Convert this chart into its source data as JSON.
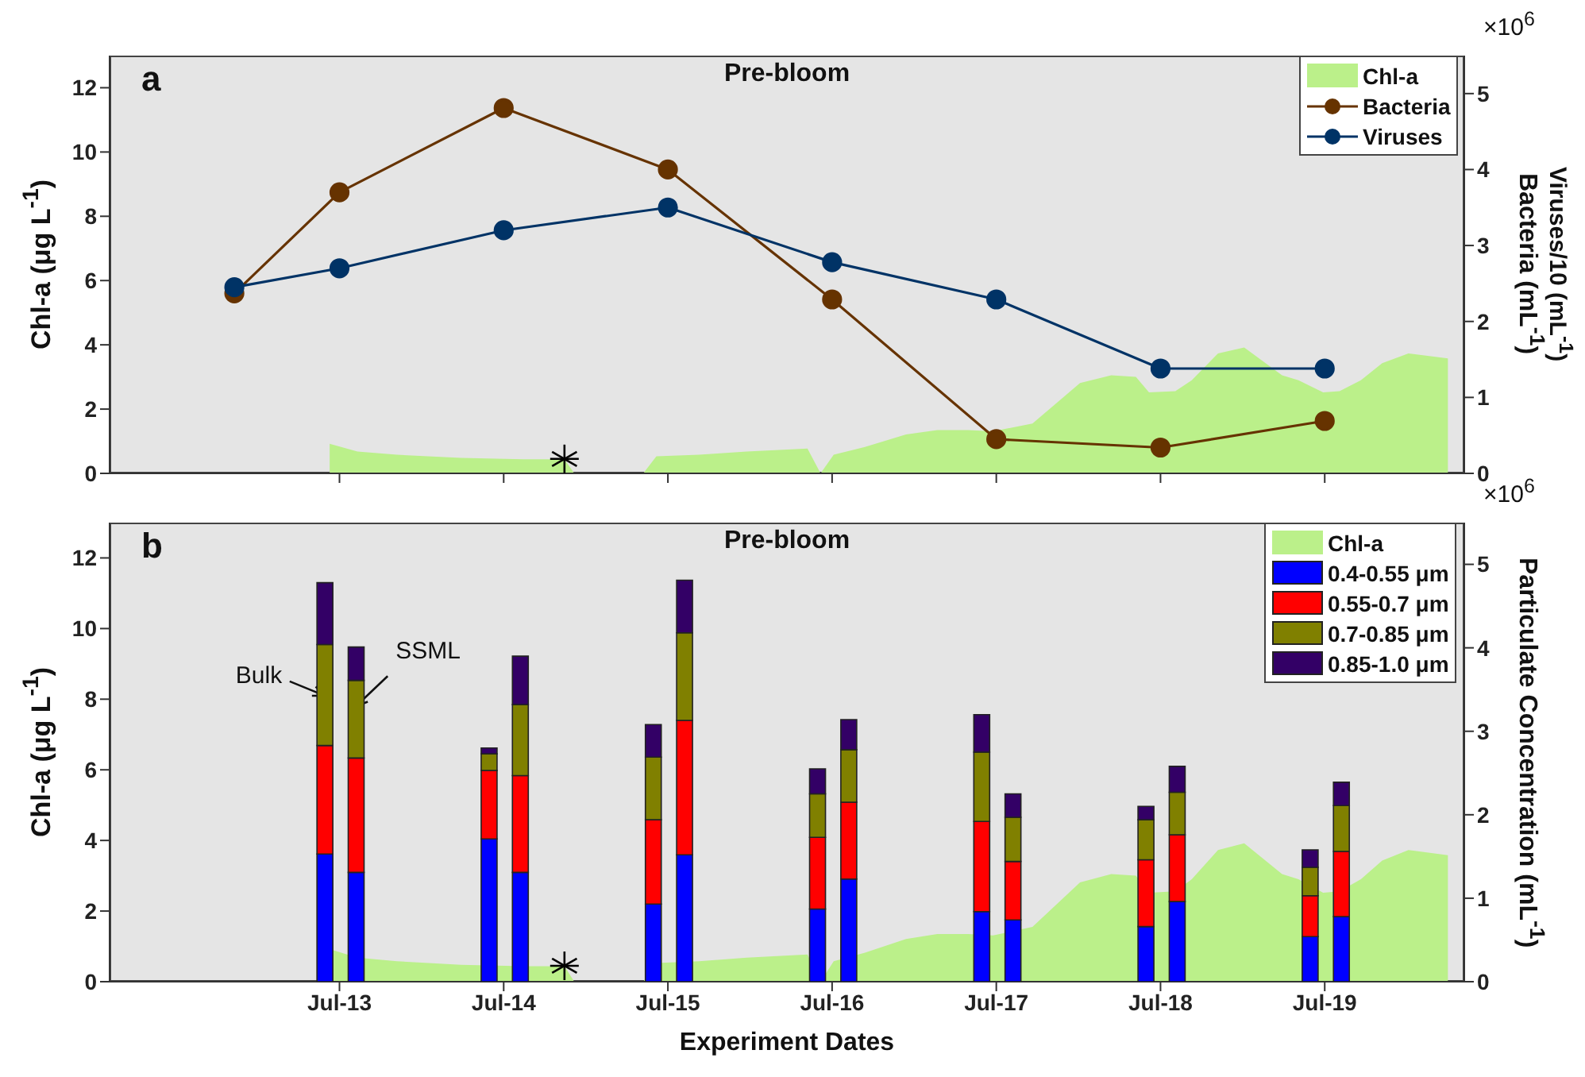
{
  "chart_data": [
    {
      "type": "line",
      "title": "Pre-bloom",
      "ylabel": "Chl-a (μg L$^{-1}$)",
      "y2label": "Bacteria (mL$^{-1}$)",
      "annotations": [
        "a",
        "×10$^{6}$",
        "Viruses/10 (mL$^{-1}$)"
      ],
      "xlim": [
        "--07-11T14:24",
        "--07-19T20:24"
      ],
      "xticks": [
        {
          "value": "--07-13",
          "label": null
        },
        {
          "value": "--07-14",
          "label": null
        },
        {
          "value": "--07-15",
          "label": null
        },
        {
          "value": "--07-16",
          "label": null
        },
        {
          "value": "--07-17",
          "label": null
        },
        {
          "value": "--07-18",
          "label": null
        },
        {
          "value": "--07-19",
          "label": null
        }
      ],
      "tick_labels": "y",
      "ylim": [
        0,
        13
      ],
      "yticks": [
        0,
        2,
        4,
        6,
        8,
        10,
        12
      ],
      "y2lim": [
        0,
        5.5
      ],
      "y2ticks": [
        0,
        1,
        2,
        3,
        4,
        5
      ],
      "legend": "top right",
      "line_style": "solid",
      "series": [
        {
          "name": "Chl-a",
          "type": "area",
          "color": "#bbf08a",
          "x": [
            "--07-12T22:34",
            "--07-13T02:38",
            "--07-13T08:24",
            "--07-13T17:46",
            "--07-14T02:53",
            "--07-14T08:53",
            "--07-14T10:19",
            "--07-14T20:24",
            "--07-14T22:19",
            "--07-15T04:34",
            "--07-15T11:31",
            "--07-15T20:24",
            "--07-15T22:19",
            "--07-16T00:14",
            "--07-16T04:48",
            "--07-16T10:48",
            "--07-16T15:22",
            "--07-16T19:55",
            "--07-16T23:31",
            "--07-17T05:17",
            "--07-17T12:14",
            "--07-17T16:48",
            "--07-17T20:24",
            "--07-17T22:19",
            "--07-18T02:10",
            "--07-18T04:34",
            "--07-18T08:24",
            "--07-18T12:14",
            "--07-18T17:46",
            "--07-18T20:10",
            "--07-18T23:46",
            "--07-19T02:10",
            "--07-19T05:17",
            "--07-19T08:24",
            "--07-19T12:14",
            "--07-19T18:00"
          ],
          "values": [
            0.92,
            0.68,
            0.58,
            0.48,
            0.44,
            0.44,
            0,
            0,
            0.53,
            0.58,
            0.68,
            0.77,
            0,
            0.58,
            0.82,
            1.21,
            1.35,
            1.35,
            1.31,
            1.55,
            2.81,
            3.05,
            3.0,
            2.52,
            2.56,
            2.9,
            3.73,
            3.92,
            3.05,
            2.9,
            2.52,
            2.56,
            2.9,
            3.43,
            3.73,
            3.58
          ]
        },
        {
          "name": "Bacteria",
          "marker": "circle",
          "axis": "y2",
          "color": "#663300",
          "x": [
            "--07-12T08:38",
            "--07-13",
            "--07-14",
            "--07-15",
            "--07-16",
            "--07-17",
            "--07-18",
            "--07-19"
          ],
          "values": [
            2.37,
            3.7,
            4.81,
            4.0,
            2.29,
            0.45,
            0.34,
            0.69
          ]
        },
        {
          "name": "Viruses",
          "marker": "circle",
          "axis": "y2",
          "color": "#003366",
          "x": [
            "--07-12T08:38",
            "--07-13",
            "--07-14",
            "--07-15",
            "--07-16",
            "--07-17",
            "--07-18",
            "--07-19"
          ],
          "values": [
            2.45,
            2.7,
            3.2,
            3.5,
            2.78,
            2.29,
            1.38,
            1.38
          ]
        },
        {
          "type": "scatter",
          "marker": "cross",
          "color": "#000000",
          "x": [
            "--07-14T08:53"
          ],
          "values": [
            0.45
          ]
        }
      ]
    },
    {
      "type": "bar",
      "title": "Pre-bloom",
      "xlabel": "Experiment Dates",
      "ylabel": "Chl-a (μg L$^{-1}$)",
      "y2label": "Particulate Concentration (mL$^{-1}$)",
      "annotations": [
        "b",
        "×10$^{6}$",
        {
          "text": "Bulk",
          "x": "--07-12T21:50",
          "y": 8.1
        },
        {
          "text": "SSML",
          "x": "--07-13T02:24",
          "y": 7.8
        }
      ],
      "xlim": [
        "--07-11T14:24",
        "--07-19T20:24"
      ],
      "xticks": [
        {
          "value": "--07-13",
          "label": "Jul-13"
        },
        {
          "value": "--07-14",
          "label": "Jul-14"
        },
        {
          "value": "--07-15",
          "label": "Jul-15"
        },
        {
          "value": "--07-16",
          "label": "Jul-16"
        },
        {
          "value": "--07-17",
          "label": "Jul-17"
        },
        {
          "value": "--07-18",
          "label": "Jul-18"
        },
        {
          "value": "--07-19",
          "label": "Jul-19"
        }
      ],
      "ylim": [
        0,
        13
      ],
      "yticks": [
        0,
        2,
        4,
        6,
        8,
        10,
        12
      ],
      "y2lim": [
        0,
        5.5
      ],
      "y2ticks": [
        0,
        1,
        2,
        3,
        4,
        5
      ],
      "legend": "top right",
      "stacked": true,
      "series": [
        {
          "name": "Chl-a",
          "type": "area",
          "color": "#bbf08a",
          "x": [
            "--07-12T22:34",
            "--07-13T02:38",
            "--07-13T08:24",
            "--07-13T17:46",
            "--07-14T02:53",
            "--07-14T08:53",
            "--07-14T10:19",
            "--07-14T20:24",
            "--07-14T22:19",
            "--07-15T04:34",
            "--07-15T11:31",
            "--07-15T20:24",
            "--07-15T22:19",
            "--07-16T00:14",
            "--07-16T04:48",
            "--07-16T10:48",
            "--07-16T15:22",
            "--07-16T19:55",
            "--07-16T23:31",
            "--07-17T05:17",
            "--07-17T12:14",
            "--07-17T16:48",
            "--07-17T20:24",
            "--07-17T22:19",
            "--07-18T02:10",
            "--07-18T04:34",
            "--07-18T08:24",
            "--07-18T12:14",
            "--07-18T17:46",
            "--07-18T20:10",
            "--07-18T23:46",
            "--07-19T02:10",
            "--07-19T05:17",
            "--07-19T08:24",
            "--07-19T12:14",
            "--07-19T18:00"
          ],
          "values": [
            0.92,
            0.68,
            0.58,
            0.48,
            0.44,
            0.44,
            0,
            0,
            0.53,
            0.58,
            0.68,
            0.77,
            0,
            0.58,
            0.82,
            1.21,
            1.35,
            1.35,
            1.31,
            1.55,
            2.81,
            3.05,
            3.0,
            2.52,
            2.56,
            2.9,
            3.73,
            3.92,
            3.05,
            2.9,
            2.52,
            2.56,
            2.9,
            3.43,
            3.73,
            3.58
          ]
        },
        {
          "name": "0.4-0.55 μm",
          "axis": "y2",
          "color": "#0000ff",
          "x": [
            "--07-12T21:50",
            "--07-13T02:24",
            "--07-13T21:50",
            "--07-14T02:24",
            "--07-14T21:50",
            "--07-15T02:24",
            "--07-15T21:50",
            "--07-16T02:24",
            "--07-16T21:50",
            "--07-17T02:24",
            "--07-17T21:50",
            "--07-18T02:24",
            "--07-18T21:50",
            "--07-19T02:24"
          ],
          "values": [
            1.53,
            1.31,
            1.71,
            1.31,
            0.93,
            1.52,
            0.87,
            1.23,
            0.84,
            0.74,
            0.66,
            0.96,
            0.54,
            0.78
          ]
        },
        {
          "name": "0.55-0.7 μm",
          "axis": "y2",
          "color": "#ff0000",
          "x": [
            "--07-12T21:50",
            "--07-13T02:24",
            "--07-13T21:50",
            "--07-14T02:24",
            "--07-14T21:50",
            "--07-15T02:24",
            "--07-15T21:50",
            "--07-16T02:24",
            "--07-16T21:50",
            "--07-17T02:24",
            "--07-17T21:50",
            "--07-18T02:24",
            "--07-18T21:50",
            "--07-19T02:24"
          ],
          "values": [
            1.3,
            1.37,
            0.82,
            1.16,
            1.01,
            1.61,
            0.86,
            0.92,
            1.08,
            0.7,
            0.8,
            0.8,
            0.49,
            0.78
          ]
        },
        {
          "name": "0.7-0.85 μm",
          "axis": "y2",
          "color": "#808000",
          "x": [
            "--07-12T21:50",
            "--07-13T02:24",
            "--07-13T21:50",
            "--07-14T02:24",
            "--07-14T21:50",
            "--07-15T02:24",
            "--07-15T21:50",
            "--07-16T02:24",
            "--07-16T21:50",
            "--07-17T02:24",
            "--07-17T21:50",
            "--07-18T02:24",
            "--07-18T21:50",
            "--07-19T02:24"
          ],
          "values": [
            1.21,
            0.93,
            0.2,
            0.85,
            0.75,
            1.05,
            0.52,
            0.63,
            0.83,
            0.53,
            0.48,
            0.51,
            0.34,
            0.55
          ]
        },
        {
          "name": "0.85-1.0 μm",
          "axis": "y2",
          "color": "#330066",
          "x": [
            "--07-12T21:50",
            "--07-13T02:24",
            "--07-13T21:50",
            "--07-14T02:24",
            "--07-14T21:50",
            "--07-15T02:24",
            "--07-15T21:50",
            "--07-16T02:24",
            "--07-16T21:50",
            "--07-17T02:24",
            "--07-17T21:50",
            "--07-18T02:24",
            "--07-18T21:50",
            "--07-19T02:24"
          ],
          "values": [
            0.74,
            0.4,
            0.07,
            0.58,
            0.39,
            0.63,
            0.3,
            0.36,
            0.45,
            0.28,
            0.16,
            0.31,
            0.21,
            0.28
          ]
        },
        {
          "type": "scatter",
          "marker": "cross",
          "color": "#000000",
          "x": [
            "--07-14T08:53"
          ],
          "values": [
            0.45
          ]
        }
      ]
    }
  ]
}
